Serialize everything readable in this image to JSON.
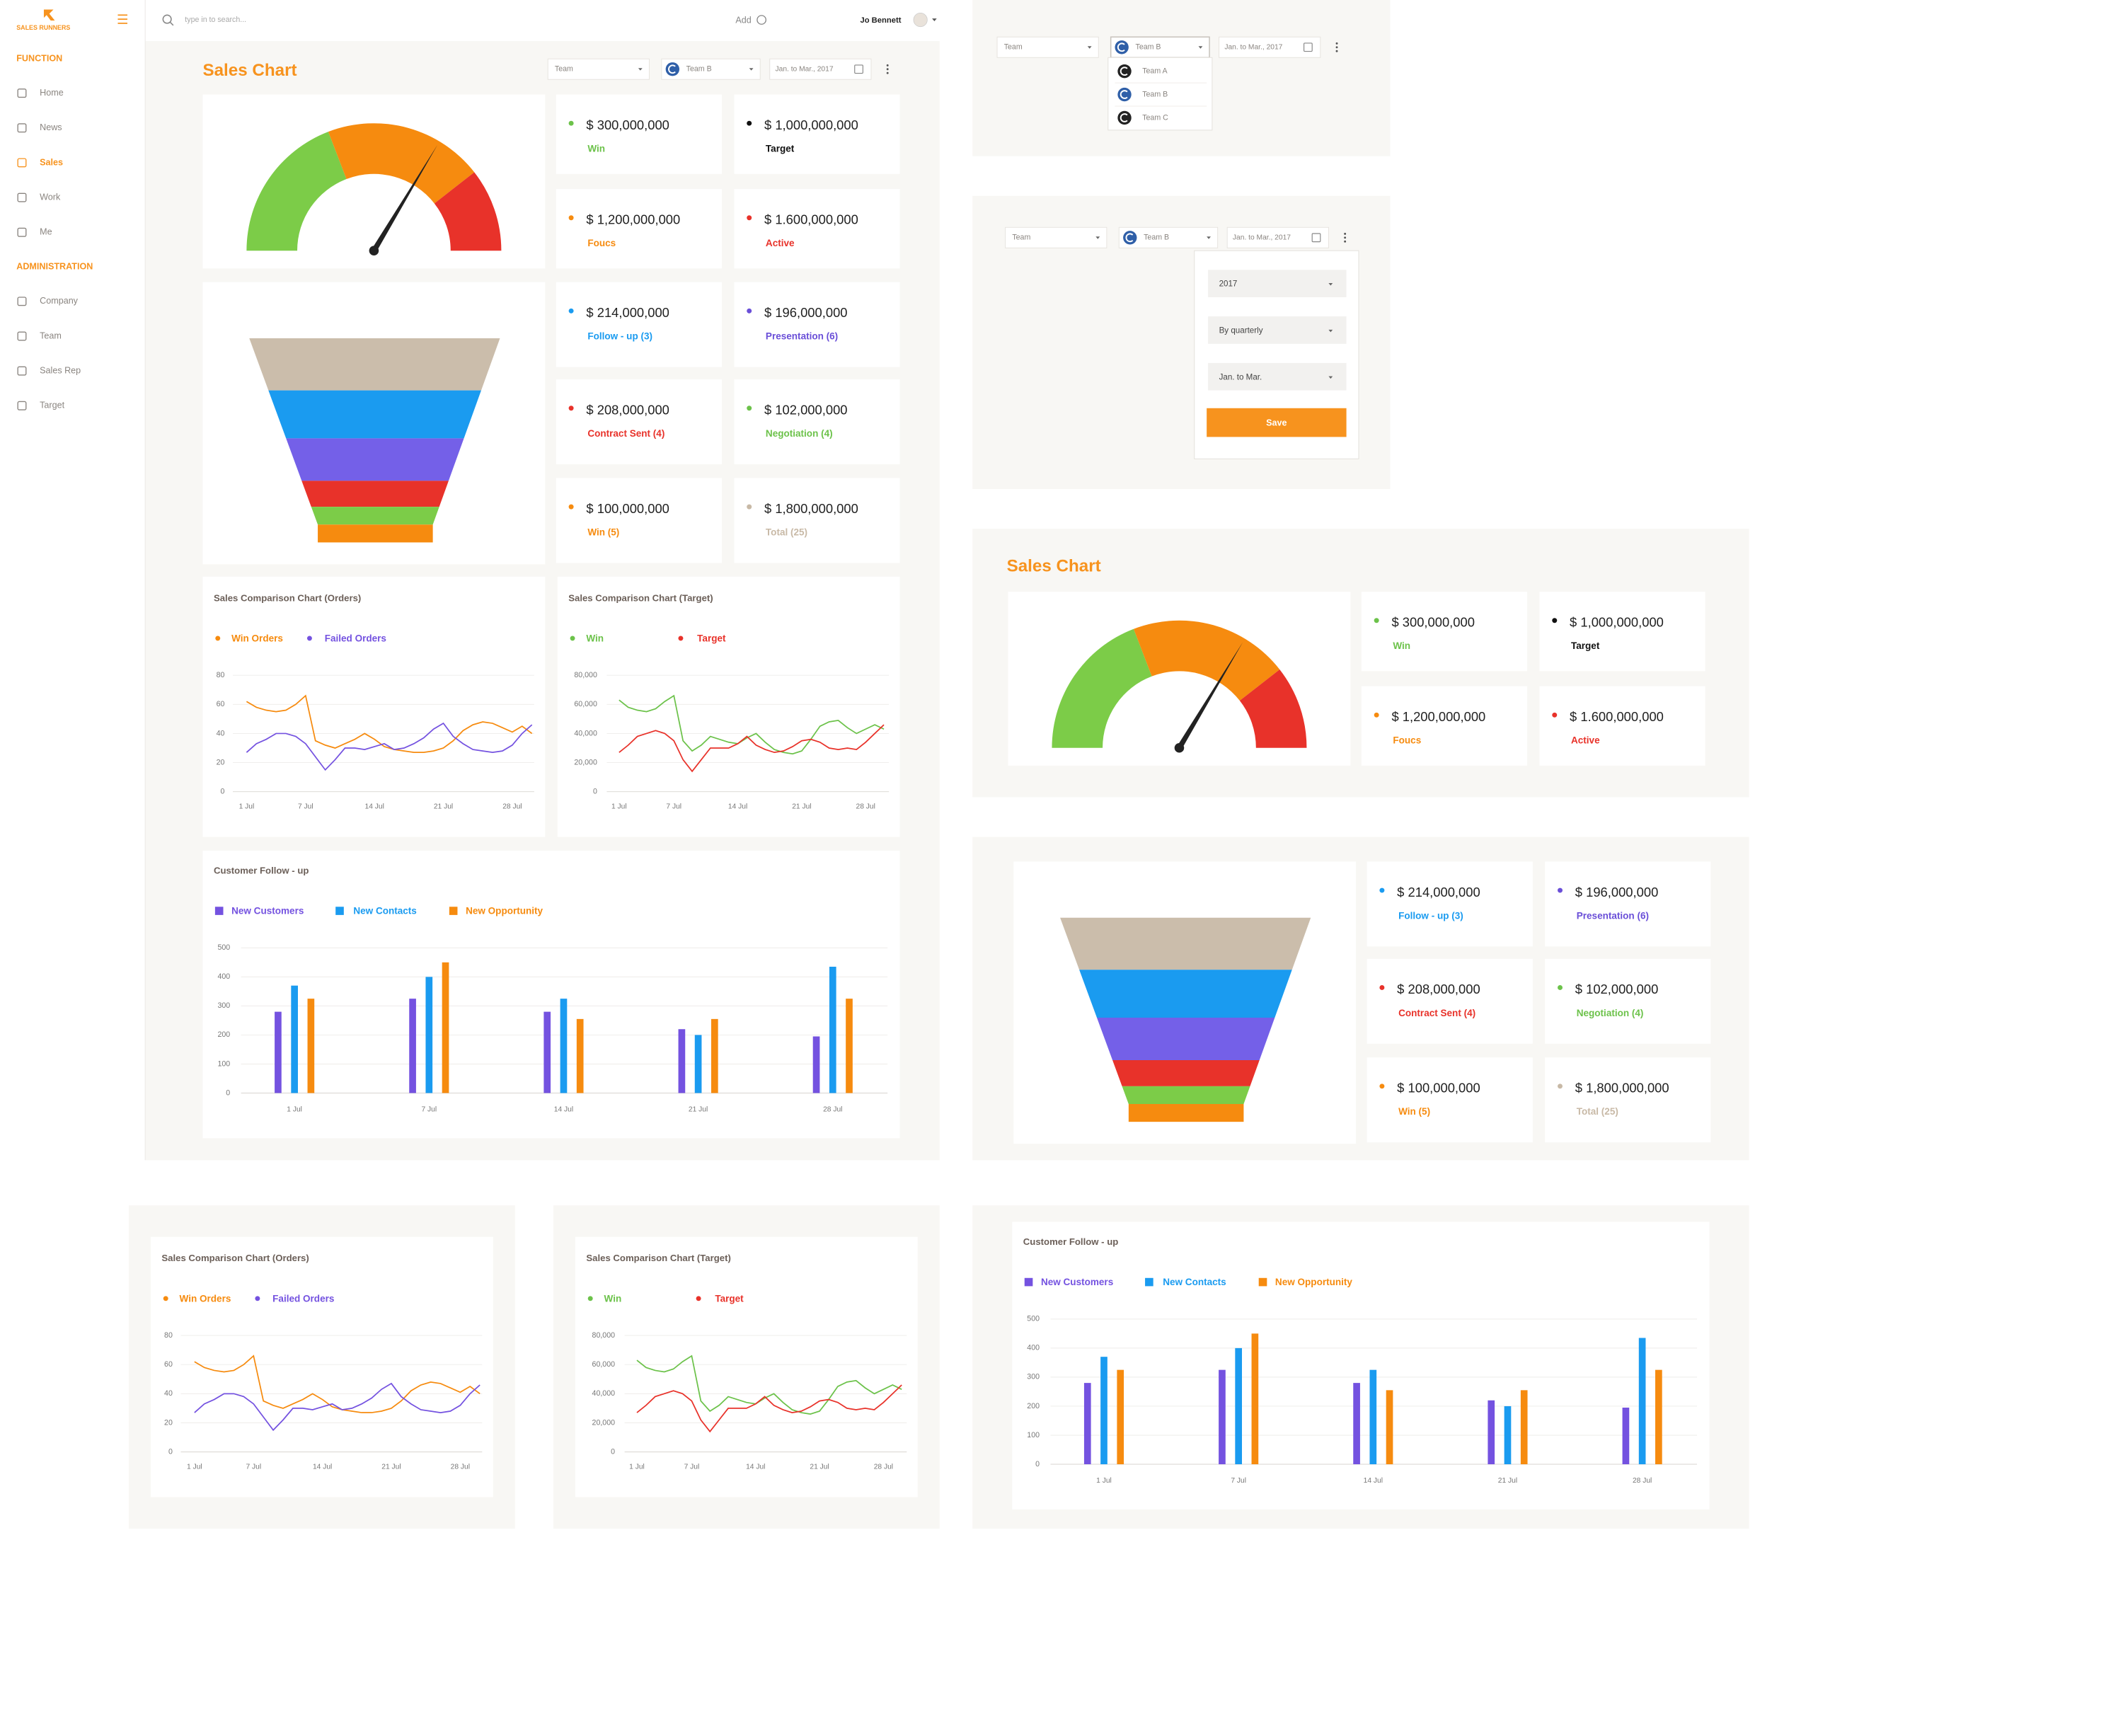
{
  "sidebar": {
    "brand": "SALES RUNNERS",
    "active": "Sales",
    "sections": [
      {
        "title": "FUNCTION",
        "items": [
          "Home",
          "News",
          "Sales",
          "Work",
          "Me"
        ]
      },
      {
        "title": "ADMINISTRATION",
        "items": [
          "Company",
          "Team",
          "Sales Rep",
          "Target"
        ]
      }
    ]
  },
  "topbar": {
    "search_placeholder": "type in to search...",
    "add": "Add",
    "user": "Jo Bennett"
  },
  "title": "Sales Chart",
  "filters": {
    "team": "Team",
    "selected_team": "Team B",
    "period": "Jan. to Mar., 2017"
  },
  "team_options": [
    "Team A",
    "Team B",
    "Team C"
  ],
  "period_picker": {
    "year": "2017",
    "mode": "By quarterly",
    "range": "Jan. to Mar.",
    "save": "Save"
  },
  "gauge_stats": [
    {
      "value": "$ 300,000,000",
      "label": "Win",
      "color": "#6cc24a"
    },
    {
      "value": "$ 1,000,000,000",
      "label": "Target",
      "color": "#111111"
    },
    {
      "value": "$ 1,200,000,000",
      "label": "Foucs",
      "color": "#f68b0f"
    },
    {
      "value": "$ 1.600,000,000",
      "label": "Active",
      "color": "#e8322a"
    }
  ],
  "funnel_stats": [
    {
      "value": "$ 214,000,000",
      "label": "Follow - up (3)",
      "color": "#1a9bf0"
    },
    {
      "value": "$ 196,000,000",
      "label": "Presentation (6)",
      "color": "#6a4fd8"
    },
    {
      "value": "$ 208,000,000",
      "label": "Contract Sent (4)",
      "color": "#e8322a"
    },
    {
      "value": "$ 102,000,000",
      "label": "Negotiation (4)",
      "color": "#6cc24a"
    },
    {
      "value": "$ 100,000,000",
      "label": "Win (5)",
      "color": "#f68b0f"
    },
    {
      "value": "$ 1,800,000,000",
      "label": "Total (25)",
      "color": "#c8b9a6"
    }
  ],
  "chart_data": [
    {
      "type": "line",
      "title": "Sales Comparison Chart (Orders)",
      "categories": [
        "1 Jul",
        null,
        null,
        null,
        null,
        null,
        "7 Jul",
        null,
        null,
        null,
        null,
        null,
        null,
        "14 Jul",
        null,
        null,
        null,
        null,
        null,
        null,
        "21 Jul",
        null,
        null,
        null,
        null,
        null,
        null,
        "28 Jul",
        null,
        null
      ],
      "series": [
        {
          "name": "Win Orders",
          "color": "#f68b0f",
          "values": [
            62,
            58,
            56,
            55,
            56,
            60,
            66,
            35,
            32,
            30,
            33,
            36,
            40,
            36,
            31,
            29,
            28,
            27,
            27,
            28,
            30,
            35,
            42,
            46,
            48,
            47,
            44,
            41,
            45,
            40
          ]
        },
        {
          "name": "Failed Orders",
          "color": "#7452e0",
          "values": [
            27,
            33,
            36,
            40,
            40,
            38,
            33,
            24,
            15,
            22,
            30,
            30,
            29,
            31,
            33,
            29,
            30,
            33,
            37,
            43,
            47,
            38,
            33,
            29,
            28,
            27,
            28,
            32,
            40,
            46
          ]
        }
      ],
      "ylim": [
        0,
        80
      ],
      "yticks": [
        0,
        20,
        40,
        60,
        80
      ],
      "grid": true
    },
    {
      "type": "line",
      "title": "Sales Comparison Chart (Target)",
      "categories": [
        "1 Jul",
        null,
        null,
        null,
        null,
        null,
        "7 Jul",
        null,
        null,
        null,
        null,
        null,
        null,
        "14 Jul",
        null,
        null,
        null,
        null,
        null,
        null,
        "21 Jul",
        null,
        null,
        null,
        null,
        null,
        null,
        "28 Jul",
        null,
        null
      ],
      "series": [
        {
          "name": "Win",
          "color": "#6cc24a",
          "values": [
            63000,
            58000,
            56000,
            55000,
            57000,
            62000,
            66000,
            35000,
            28000,
            32000,
            38000,
            36000,
            34000,
            33000,
            37000,
            40000,
            34000,
            29000,
            27000,
            26000,
            28000,
            36000,
            45000,
            48000,
            49000,
            44000,
            40000,
            43000,
            46000,
            43000
          ]
        },
        {
          "name": "Target",
          "color": "#e8322a",
          "values": [
            27000,
            32000,
            38000,
            40000,
            42000,
            40000,
            35000,
            22000,
            14000,
            22000,
            30000,
            30000,
            30000,
            33000,
            38000,
            32000,
            29000,
            27000,
            28000,
            31000,
            35000,
            36000,
            34000,
            30000,
            29000,
            30000,
            29000,
            34000,
            40000,
            46000
          ]
        }
      ],
      "ylim": [
        0,
        80000
      ],
      "yticks": [
        0,
        {
          "value": 20000,
          "label": "20,000"
        },
        {
          "value": 40000,
          "label": "40,000"
        },
        {
          "value": 60000,
          "label": "60,000"
        },
        {
          "value": 80000,
          "label": "80,000"
        }
      ],
      "grid": true
    },
    {
      "type": "bar",
      "title": "Customer Follow - up",
      "categories": [
        "1 Jul",
        "7 Jul",
        "14 Jul",
        "21 Jul",
        "28 Jul"
      ],
      "series": [
        {
          "name": "New Customers",
          "color": "#7452e0",
          "values": [
            280,
            325,
            280,
            220,
            195
          ]
        },
        {
          "name": "New Contacts",
          "color": "#1a9bf0",
          "values": [
            370,
            400,
            325,
            200,
            435
          ]
        },
        {
          "name": "New Opportunity",
          "color": "#f68b0f",
          "values": [
            325,
            450,
            255,
            255,
            325
          ]
        }
      ],
      "ylim": [
        0,
        500
      ],
      "yticks": [
        0,
        100,
        200,
        300,
        400,
        500
      ],
      "grid": true
    }
  ]
}
